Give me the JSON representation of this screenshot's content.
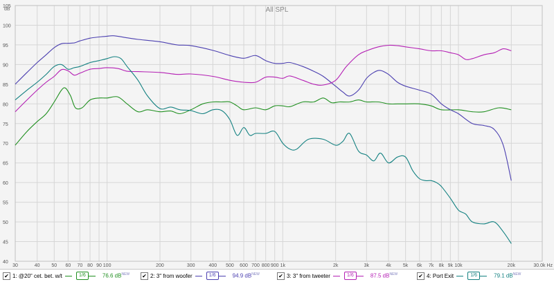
{
  "chart_data": {
    "type": "line",
    "title": "All SPL",
    "ylabel": "dB",
    "xlabel_unit": "Hz",
    "x_scale": "log",
    "xlim": [
      30,
      30000
    ],
    "ylim": [
      40,
      105
    ],
    "grid": true,
    "y_ticks": [
      "40",
      "45",
      "50",
      "55",
      "60",
      "65",
      "70",
      "75",
      "80",
      "85",
      "90",
      "95",
      "100",
      "105"
    ],
    "x_ticks": [
      {
        "v": 30,
        "label": "30"
      },
      {
        "v": 40,
        "label": "40"
      },
      {
        "v": 50,
        "label": "50"
      },
      {
        "v": 60,
        "label": "60"
      },
      {
        "v": 70,
        "label": "70"
      },
      {
        "v": 80,
        "label": "80"
      },
      {
        "v": 90,
        "label": "90"
      },
      {
        "v": 100,
        "label": "100"
      },
      {
        "v": 200,
        "label": "200"
      },
      {
        "v": 300,
        "label": "300"
      },
      {
        "v": 400,
        "label": "400"
      },
      {
        "v": 500,
        "label": "500"
      },
      {
        "v": 600,
        "label": "600"
      },
      {
        "v": 700,
        "label": "700"
      },
      {
        "v": 800,
        "label": "800"
      },
      {
        "v": 900,
        "label": "900"
      },
      {
        "v": 1000,
        "label": "1k"
      },
      {
        "v": 2000,
        "label": "2k"
      },
      {
        "v": 3000,
        "label": "3k"
      },
      {
        "v": 4000,
        "label": "4k"
      },
      {
        "v": 5000,
        "label": "5k"
      },
      {
        "v": 6000,
        "label": "6k"
      },
      {
        "v": 7000,
        "label": "7k"
      },
      {
        "v": 8000,
        "label": "8k"
      },
      {
        "v": 9000,
        "label": "9k"
      },
      {
        "v": 10000,
        "label": "10k"
      },
      {
        "v": 20000,
        "label": "20k"
      },
      {
        "v": 30000,
        "label": "30.0k Hz"
      }
    ],
    "series": [
      {
        "name": "1: @20\" cet. bet. w/t",
        "color": "#1f8f1f",
        "smoothing": "1/6",
        "level": "76.6 dB",
        "x": [
          30,
          35,
          40,
          45,
          50,
          55,
          58,
          62,
          66,
          72,
          80,
          90,
          100,
          115,
          130,
          150,
          170,
          200,
          230,
          260,
          300,
          350,
          400,
          450,
          500,
          550,
          600,
          700,
          800,
          900,
          1000,
          1100,
          1300,
          1500,
          1700,
          1900,
          2100,
          2400,
          2700,
          3000,
          3500,
          4000,
          4500,
          5000,
          6000,
          7000,
          8000,
          10000,
          12000,
          14000,
          17000,
          20000
        ],
        "y": [
          69.5,
          73,
          75.5,
          77.5,
          80.5,
          83.5,
          84,
          82,
          79,
          79,
          81,
          81.5,
          81.5,
          81.8,
          80,
          78,
          78.5,
          78,
          78.2,
          77.5,
          78.5,
          80,
          80.5,
          80.5,
          80.5,
          79.5,
          78.5,
          79,
          78.5,
          79.5,
          79.5,
          79.3,
          80.5,
          80.5,
          81.5,
          80.3,
          80.5,
          80.5,
          81,
          80.5,
          80.5,
          80,
          80,
          80,
          80,
          79.5,
          78.5,
          78.5,
          78,
          78,
          79,
          78.5
        ]
      },
      {
        "name": "2: 3\" from woofer",
        "color": "#4b3fb0",
        "smoothing": "1/6",
        "level": "94.9 dB",
        "x": [
          30,
          35,
          40,
          45,
          50,
          55,
          60,
          65,
          70,
          80,
          90,
          100,
          110,
          130,
          150,
          200,
          250,
          300,
          400,
          500,
          600,
          700,
          800,
          900,
          1000,
          1100,
          1300,
          1500,
          1700,
          2000,
          2200,
          2400,
          2700,
          3000,
          3300,
          3600,
          4000,
          4500,
          5000,
          6000,
          7000,
          8000,
          9000,
          10000,
          12000,
          14000,
          16000,
          18000,
          20000
        ],
        "y": [
          85,
          88,
          90.5,
          92.5,
          94.3,
          95.3,
          95.4,
          95.5,
          96,
          96.7,
          97,
          97.2,
          97.3,
          96.8,
          96.4,
          95.8,
          95,
          94.8,
          93.6,
          92.3,
          91.6,
          92.3,
          91,
          90.3,
          90.3,
          90.5,
          89.5,
          88.3,
          87,
          84.5,
          83,
          82,
          83.5,
          86.5,
          88,
          88.5,
          87.5,
          85.5,
          84.5,
          83.5,
          82.5,
          80,
          78.5,
          77.5,
          75,
          74.5,
          73.5,
          69.5,
          60.5
        ]
      },
      {
        "name": "3: 3\" from tweeter",
        "color": "#b41fb4",
        "smoothing": "1/6",
        "level": "87.5 dB",
        "x": [
          30,
          35,
          40,
          45,
          50,
          55,
          60,
          65,
          70,
          80,
          90,
          100,
          115,
          130,
          150,
          200,
          250,
          300,
          400,
          500,
          600,
          700,
          800,
          900,
          1000,
          1100,
          1300,
          1500,
          1700,
          2000,
          2300,
          2700,
          3000,
          3500,
          4000,
          4500,
          5000,
          6000,
          7000,
          8000,
          9000,
          10000,
          11000,
          12000,
          14000,
          16000,
          18000,
          20000
        ],
        "y": [
          78,
          81,
          83.5,
          85.5,
          87,
          88.7,
          88.4,
          87.3,
          87.8,
          88.8,
          89,
          89.2,
          89,
          88.3,
          88.2,
          88,
          87.5,
          87.6,
          87,
          86,
          85.5,
          85.5,
          86.8,
          86.8,
          86.5,
          87.1,
          86,
          85,
          84.8,
          86,
          89.5,
          92.5,
          93.5,
          94.5,
          94.9,
          94.8,
          94.5,
          94,
          93.5,
          93.5,
          93,
          92.5,
          91.3,
          91.5,
          92.5,
          93,
          94,
          93.5
        ]
      },
      {
        "name": "4: Port Exit",
        "color": "#128080",
        "smoothing": "1/6",
        "level": "79.1 dB",
        "x": [
          30,
          35,
          40,
          45,
          50,
          55,
          60,
          65,
          70,
          80,
          90,
          100,
          110,
          120,
          130,
          150,
          170,
          200,
          230,
          260,
          300,
          350,
          400,
          450,
          500,
          550,
          600,
          650,
          700,
          800,
          900,
          1000,
          1100,
          1200,
          1400,
          1700,
          2000,
          2200,
          2400,
          2700,
          3000,
          3300,
          3600,
          4000,
          4500,
          5000,
          5500,
          6000,
          6500,
          7000,
          7500,
          8000,
          9000,
          10000,
          11000,
          12000,
          14000,
          16000,
          18000,
          20000
        ],
        "y": [
          81,
          83.5,
          85.5,
          87.5,
          89.5,
          90,
          88.8,
          89.2,
          89.5,
          90.5,
          91,
          91.5,
          92,
          91.5,
          89.5,
          86,
          82,
          78.8,
          79.2,
          78.5,
          78.3,
          77.5,
          78.5,
          78.3,
          76,
          72,
          74,
          72,
          72.5,
          72.5,
          73,
          70,
          68.5,
          68.5,
          71,
          71,
          69.5,
          70.5,
          72.5,
          68,
          67,
          65.5,
          67.5,
          65,
          66.5,
          66.5,
          63,
          61,
          60.5,
          60.5,
          60,
          59,
          56,
          53,
          52,
          50,
          49.5,
          50,
          47.5,
          44.5
        ]
      }
    ]
  },
  "legend_items": [
    {
      "check": "✔",
      "label": "1: @20\" cet. bet. w/t",
      "smoothing": "1/6",
      "level": "76.6 dB",
      "tag": "NEW",
      "color": "#1f8f1f"
    },
    {
      "check": "✔",
      "label": "2: 3\" from woofer",
      "smoothing": "1/6",
      "level": "94.9 dB",
      "tag": "NEW",
      "color": "#4b3fb0"
    },
    {
      "check": "✔",
      "label": "3: 3\" from tweeter",
      "smoothing": "1/6",
      "level": "87.5 dB",
      "tag": "NEW",
      "color": "#b41fb4"
    },
    {
      "check": "✔",
      "label": "4: Port Exit",
      "smoothing": "1/6",
      "level": "79.1 dB",
      "tag": "NEW",
      "color": "#128080"
    }
  ]
}
